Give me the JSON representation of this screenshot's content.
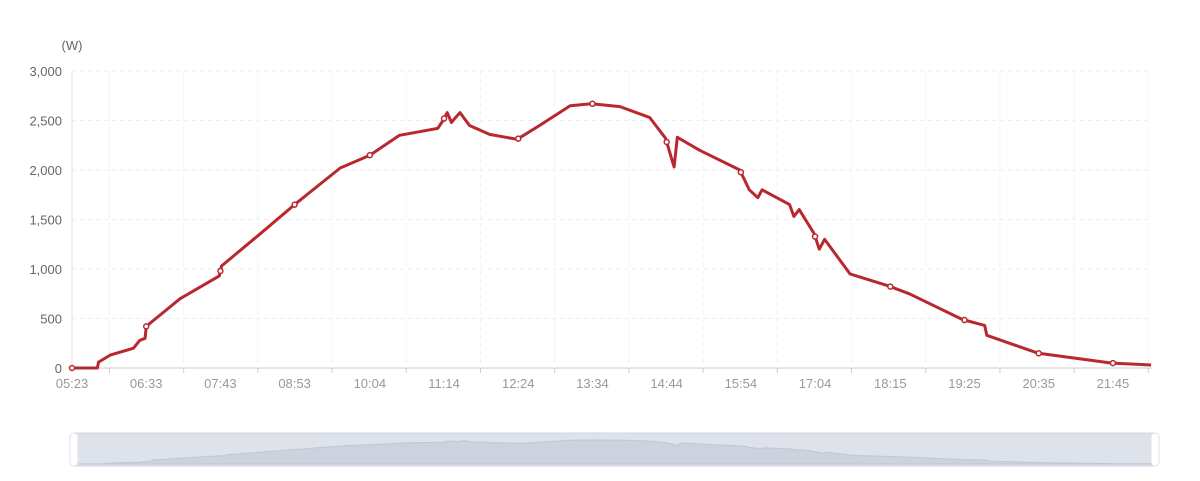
{
  "chart_data": {
    "type": "line",
    "title": "",
    "ylabel": "(W)",
    "xlabel": "",
    "ylim": [
      0,
      3000
    ],
    "yticks": [
      0,
      500,
      1000,
      1500,
      2000,
      2500,
      3000
    ],
    "ytick_labels": [
      "0",
      "500",
      "1,000",
      "1,500",
      "2,000",
      "2,500",
      "3,000"
    ],
    "xtick_labels": [
      "05:23",
      "06:33",
      "07:43",
      "08:53",
      "10:04",
      "11:14",
      "12:24",
      "13:34",
      "14:44",
      "15:54",
      "17:04",
      "18:15",
      "19:25",
      "20:35",
      "21:45"
    ],
    "xrange": [
      "05:23",
      "22:21"
    ],
    "grid": true,
    "line_color": "#b8282e",
    "data_zoom_slider": true,
    "series": [
      {
        "points": [
          [
            "05:23",
            0
          ],
          [
            "05:47",
            0
          ],
          [
            "05:48",
            60
          ],
          [
            "05:59",
            130
          ],
          [
            "06:21",
            200
          ],
          [
            "06:27",
            280
          ],
          [
            "06:32",
            300
          ],
          [
            "06:33",
            420
          ],
          [
            "07:05",
            700
          ],
          [
            "07:42",
            930
          ],
          [
            "07:44",
            1030
          ],
          [
            "08:20",
            1350
          ],
          [
            "08:53",
            1650
          ],
          [
            "09:36",
            2020
          ],
          [
            "10:04",
            2150
          ],
          [
            "10:32",
            2350
          ],
          [
            "11:08",
            2420
          ],
          [
            "11:13",
            2500
          ],
          [
            "11:17",
            2580
          ],
          [
            "11:21",
            2480
          ],
          [
            "11:24",
            2520
          ],
          [
            "11:29",
            2580
          ],
          [
            "11:38",
            2450
          ],
          [
            "11:57",
            2360
          ],
          [
            "12:23",
            2310
          ],
          [
            "12:44",
            2450
          ],
          [
            "13:13",
            2650
          ],
          [
            "13:33",
            2670
          ],
          [
            "14:00",
            2640
          ],
          [
            "14:28",
            2530
          ],
          [
            "14:43",
            2320
          ],
          [
            "14:49",
            2100
          ],
          [
            "14:51",
            2030
          ],
          [
            "14:54",
            2330
          ],
          [
            "15:15",
            2200
          ],
          [
            "15:53",
            2000
          ],
          [
            "16:02",
            1800
          ],
          [
            "16:10",
            1720
          ],
          [
            "16:14",
            1800
          ],
          [
            "16:40",
            1650
          ],
          [
            "16:44",
            1530
          ],
          [
            "16:49",
            1600
          ],
          [
            "17:03",
            1360
          ],
          [
            "17:08",
            1200
          ],
          [
            "17:13",
            1300
          ],
          [
            "17:37",
            950
          ],
          [
            "18:13",
            830
          ],
          [
            "18:33",
            750
          ],
          [
            "19:23",
            490
          ],
          [
            "19:44",
            430
          ],
          [
            "19:46",
            330
          ],
          [
            "20:34",
            150
          ],
          [
            "21:44",
            50
          ],
          [
            "22:21",
            30
          ]
        ]
      }
    ]
  }
}
